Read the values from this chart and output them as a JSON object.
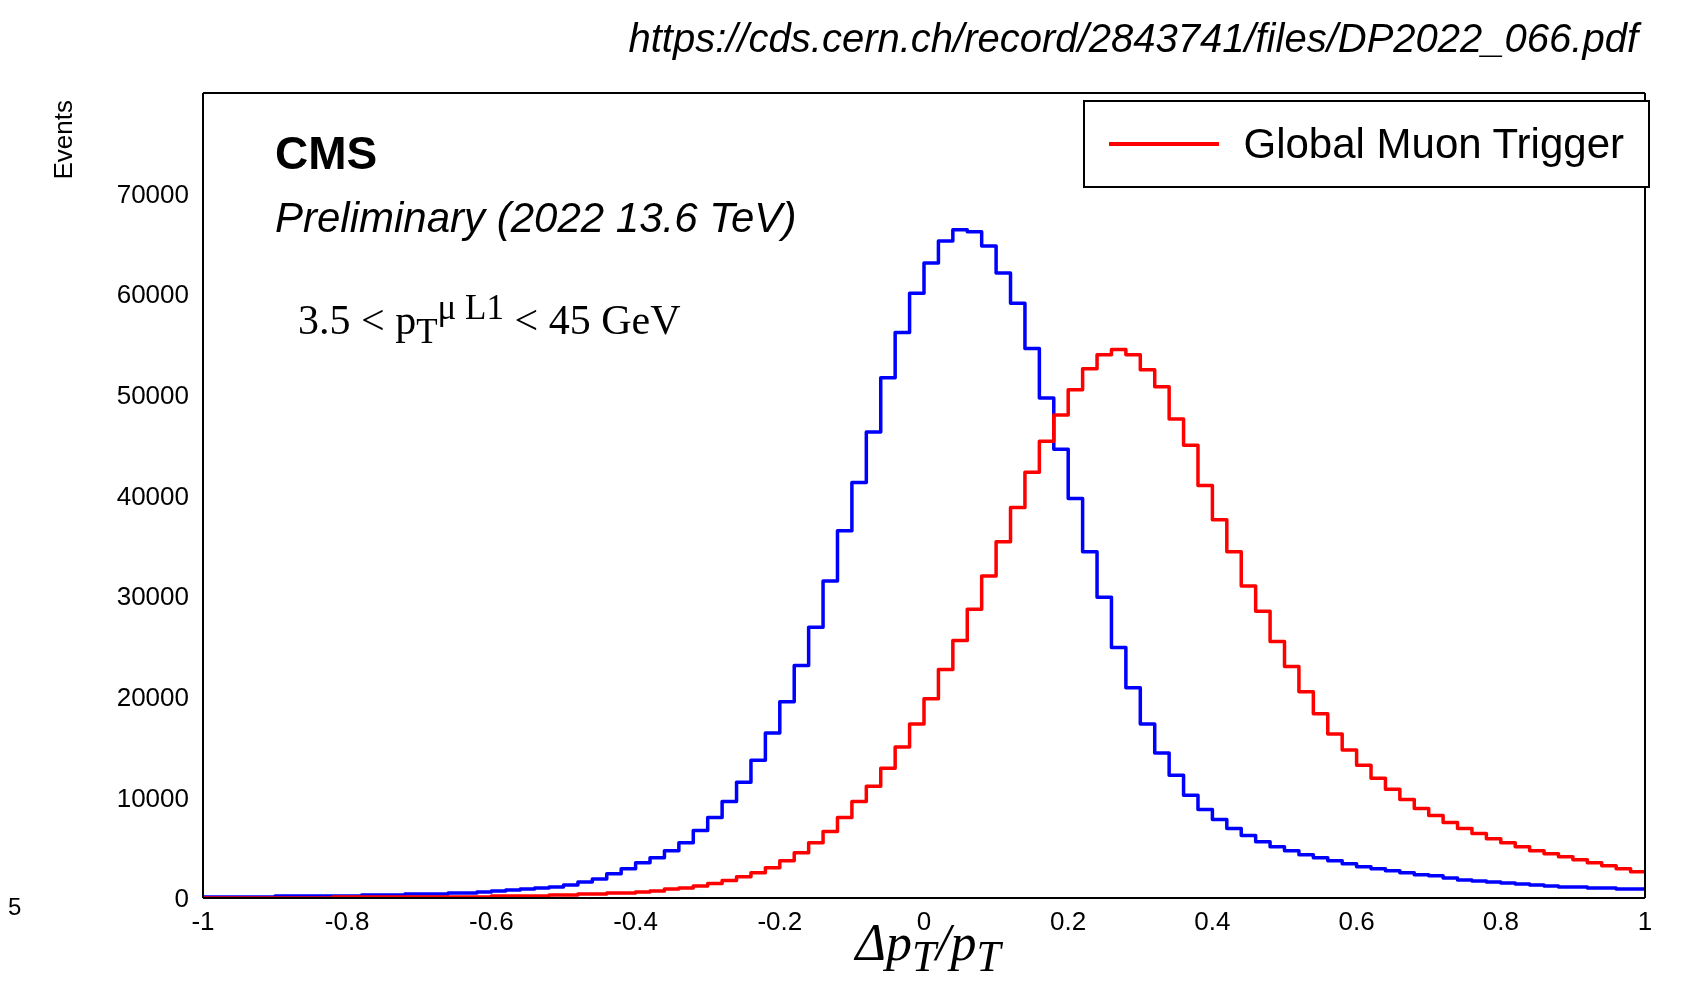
{
  "chart_data": {
    "type": "histogram",
    "ylabel": "Events",
    "xlabel": "Δp$_{T}$/p$_{T}$",
    "annotations": [
      "https://cds.cern.ch/record/2843741/files/DP2022_066.pdf",
      "CMS",
      "Preliminary (2022 13.6 TeV)",
      "3.5 < p$_{T}$$^{μ L1}$ < 45 GeV",
      "5"
    ],
    "bins": [
      -1,
      -0.98,
      -0.96,
      -0.94,
      -0.92,
      -0.9,
      -0.88,
      -0.86,
      -0.84,
      -0.82,
      -0.8,
      -0.78,
      -0.76,
      -0.74,
      -0.72,
      -0.7,
      -0.68,
      -0.66,
      -0.64,
      -0.62,
      -0.6,
      -0.58,
      -0.56,
      -0.54,
      -0.52,
      -0.5,
      -0.48,
      -0.46,
      -0.44,
      -0.42,
      -0.4,
      -0.38,
      -0.36,
      -0.34,
      -0.32,
      -0.3,
      -0.28,
      -0.26,
      -0.24,
      -0.22,
      -0.2,
      -0.18,
      -0.16,
      -0.14,
      -0.12,
      -0.1,
      -0.08,
      -0.06,
      -0.04,
      -0.02,
      0,
      0.02,
      0.04,
      0.06,
      0.08,
      0.1,
      0.12,
      0.14,
      0.16,
      0.18,
      0.2,
      0.22,
      0.24,
      0.26,
      0.28,
      0.3,
      0.32,
      0.34,
      0.36,
      0.38,
      0.4,
      0.42,
      0.44,
      0.46,
      0.48,
      0.5,
      0.52,
      0.54,
      0.56,
      0.58,
      0.6,
      0.62,
      0.64,
      0.66,
      0.68,
      0.7,
      0.72,
      0.74,
      0.76,
      0.78,
      0.8,
      0.82,
      0.84,
      0.86,
      0.88,
      0.9,
      0.92,
      0.94,
      0.96,
      0.98,
      1
    ],
    "series": [
      {
        "color": "#0000ff",
        "values": [
          100,
          100,
          100,
          100,
          100,
          200,
          200,
          200,
          200,
          200,
          200,
          300,
          300,
          300,
          400,
          400,
          400,
          500,
          500,
          600,
          700,
          800,
          900,
          1000,
          1100,
          1300,
          1600,
          1900,
          2400,
          2900,
          3500,
          4000,
          4700,
          5500,
          6700,
          8000,
          9600,
          11500,
          13700,
          16400,
          19500,
          23100,
          26900,
          31500,
          36500,
          41300,
          46300,
          51700,
          56200,
          60100,
          63100,
          65300,
          66400,
          66200,
          64800,
          62100,
          59100,
          54600,
          49700,
          44600,
          39700,
          34400,
          29900,
          24900,
          20900,
          17300,
          14400,
          12200,
          10200,
          8800,
          7800,
          6900,
          6200,
          5600,
          5100,
          4700,
          4300,
          4000,
          3700,
          3400,
          3100,
          2900,
          2700,
          2500,
          2300,
          2200,
          2000,
          1800,
          1700,
          1600,
          1500,
          1400,
          1300,
          1200,
          1100,
          1100,
          1000,
          1000,
          900,
          900
        ]
      },
      {
        "name": "Global Muon Trigger",
        "color": "#ff0000",
        "values": [
          0,
          0,
          0,
          0,
          0,
          0,
          0,
          0,
          0,
          100,
          100,
          100,
          100,
          100,
          100,
          100,
          100,
          100,
          100,
          100,
          200,
          200,
          200,
          200,
          300,
          300,
          400,
          400,
          500,
          500,
          600,
          700,
          900,
          1000,
          1200,
          1450,
          1750,
          2100,
          2500,
          3000,
          3700,
          4500,
          5500,
          6600,
          8000,
          9600,
          11100,
          12900,
          15000,
          17300,
          19800,
          22700,
          25600,
          28700,
          32000,
          35400,
          38800,
          42300,
          45400,
          48000,
          50500,
          52600,
          54000,
          54500,
          54000,
          52500,
          50800,
          47600,
          45000,
          41000,
          37600,
          34400,
          31000,
          28500,
          25500,
          23000,
          20500,
          18300,
          16300,
          14700,
          13200,
          11900,
          10800,
          9800,
          8900,
          8200,
          7500,
          6900,
          6400,
          5900,
          5500,
          5100,
          4700,
          4400,
          4100,
          3800,
          3500,
          3200,
          2900,
          2600
        ]
      }
    ],
    "xlim": [
      -1,
      1
    ],
    "xticks": [
      -1,
      -0.8,
      -0.6,
      -0.4,
      -0.2,
      0,
      0.2,
      0.4,
      0.6,
      0.8,
      1
    ],
    "ylim": [
      0,
      80000
    ],
    "yticks": [
      0,
      10000,
      20000,
      30000,
      40000,
      50000,
      60000,
      70000
    ],
    "legend": "top right"
  }
}
